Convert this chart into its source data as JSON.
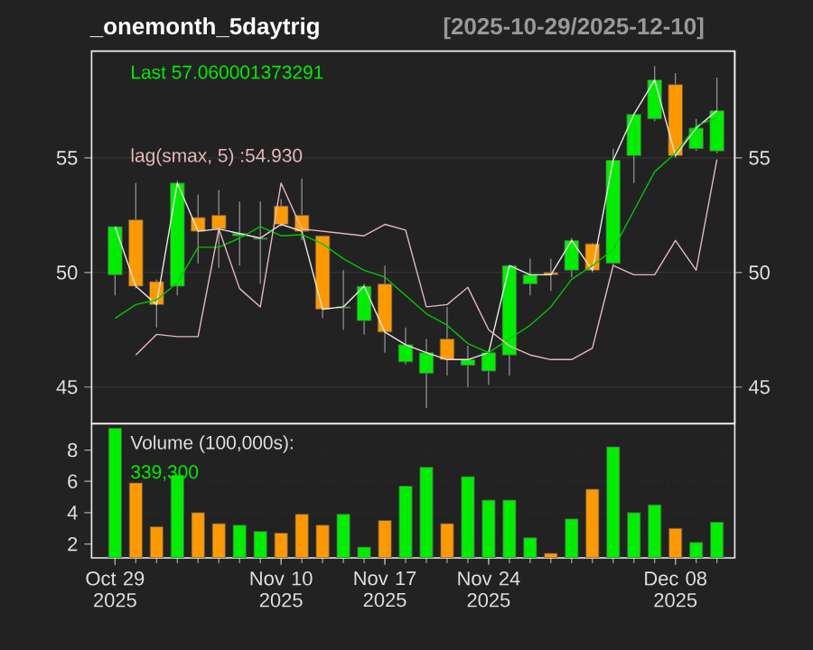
{
  "chart_data": [
    {
      "type": "candlestick",
      "title": "_onemonth_5daytrig",
      "subtitle": "[2025-10-29/2025-12-10]",
      "categories": [
        null,
        null,
        null,
        null,
        null,
        null,
        null,
        null,
        null,
        null,
        null,
        null,
        null,
        null,
        null,
        null,
        null,
        null,
        null,
        null,
        null,
        null,
        null,
        null,
        null,
        null,
        null,
        null,
        null,
        null
      ],
      "ohlc": [
        [
          49.9,
          52.0,
          49.0,
          52.0
        ],
        [
          52.3,
          53.9,
          49.3,
          49.4
        ],
        [
          49.6,
          49.7,
          47.6,
          48.6
        ],
        [
          49.4,
          54.0,
          49.0,
          53.9
        ],
        [
          52.4,
          53.4,
          50.4,
          51.8
        ],
        [
          52.5,
          53.6,
          50.2,
          51.9
        ],
        [
          51.6,
          53.1,
          50.3,
          51.7
        ],
        [
          51.45,
          53.1,
          49.5,
          51.5
        ],
        [
          52.9,
          53.2,
          52.0,
          52.1
        ],
        [
          52.5,
          54.1,
          51.4,
          51.8
        ],
        [
          51.6,
          51.6,
          48.0,
          48.4
        ],
        [
          48.45,
          50.1,
          47.5,
          48.5
        ],
        [
          47.9,
          49.5,
          47.3,
          49.4
        ],
        [
          49.5,
          50.3,
          46.5,
          47.4
        ],
        [
          46.1,
          47.6,
          46.0,
          46.85
        ],
        [
          45.6,
          47.1,
          44.1,
          46.5
        ],
        [
          47.1,
          48.5,
          45.5,
          46.2
        ],
        [
          45.95,
          46.8,
          45.0,
          46.2
        ],
        [
          45.7,
          46.6,
          45.1,
          46.5
        ],
        [
          46.4,
          50.3,
          45.5,
          50.3
        ],
        [
          49.5,
          50.6,
          49.0,
          49.9
        ],
        [
          50.0,
          50.6,
          49.2,
          49.9
        ],
        [
          50.1,
          51.5,
          49.8,
          51.4
        ],
        [
          51.25,
          51.3,
          50.0,
          50.1
        ],
        [
          50.4,
          55.4,
          50.3,
          54.9
        ],
        [
          55.1,
          56.9,
          53.9,
          56.9
        ],
        [
          56.7,
          59.0,
          56.6,
          58.4
        ],
        [
          58.2,
          58.7,
          55.0,
          55.1
        ],
        [
          55.4,
          56.7,
          55.3,
          56.3
        ],
        [
          55.3,
          58.5,
          55.2,
          57.06
        ]
      ],
      "colors": [
        "#00ee00",
        "#ff9900",
        "#ff9900",
        "#00ee00",
        "#ff9900",
        "#ff9900",
        "#00ee00",
        "#00ee00",
        "#ff9900",
        "#ff9900",
        "#ff9900",
        "#00ee00",
        "#00ee00",
        "#ff9900",
        "#00ee00",
        "#00ee00",
        "#ff9900",
        "#00ee00",
        "#00ee00",
        "#00ee00",
        "#00ee00",
        "#ff9900",
        "#00ee00",
        "#ff9900",
        "#00ee00",
        "#00ee00",
        "#00ee00",
        "#ff9900",
        "#00ee00",
        "#00ee00"
      ],
      "series": [
        {
          "type": "line",
          "color": "#e8e8e8",
          "values": [
            52.0,
            49.4,
            48.6,
            53.9,
            51.8,
            51.9,
            51.7,
            51.5,
            52.1,
            51.8,
            48.4,
            48.5,
            49.4,
            47.4,
            46.85,
            46.5,
            46.2,
            46.2,
            46.5,
            50.3,
            49.9,
            49.9,
            51.4,
            50.1,
            54.9,
            56.9,
            58.4,
            55.1,
            56.3,
            57.06
          ]
        },
        {
          "type": "line",
          "color": "#00c800",
          "values": [
            48.0,
            48.6,
            48.8,
            49.55,
            51.1,
            51.1,
            51.5,
            52.0,
            51.6,
            51.65,
            51.25,
            50.6,
            50.1,
            49.8,
            49.0,
            48.2,
            47.7,
            46.9,
            46.5,
            47.1,
            47.7,
            48.5,
            49.7,
            50.3,
            51.0,
            52.7,
            54.4,
            55.2,
            56.4,
            56.75
          ]
        },
        {
          "type": "line",
          "color": "#e6b8bc",
          "values": [
            null,
            46.4,
            47.3,
            47.2,
            47.2,
            51.9,
            49.3,
            48.5,
            53.9,
            51.9,
            51.8,
            51.7,
            51.6,
            52.1,
            51.85,
            48.5,
            48.6,
            49.35,
            47.5,
            46.8,
            46.4,
            46.2,
            46.2,
            46.7,
            50.3,
            49.9,
            49.9,
            51.4,
            50.1,
            54.93
          ]
        }
      ],
      "ylim": [
        43.4,
        59.66
      ],
      "yticks": [
        45,
        50,
        55
      ],
      "y2lim": [
        43.4,
        59.66
      ],
      "y2ticks": [
        45,
        50,
        55
      ],
      "grid": "y",
      "tick_labels": "y",
      "annotations": [
        "Last 57.060001373291",
        "lag(smax, 5) :54.930"
      ]
    },
    {
      "type": "bar",
      "categories": [
        "Oct 29 2025",
        null,
        null,
        null,
        null,
        null,
        null,
        null,
        "Nov 10 2025",
        null,
        null,
        null,
        null,
        "Nov 17 2025",
        null,
        null,
        null,
        null,
        "Nov 24 2025",
        null,
        null,
        null,
        null,
        null,
        null,
        null,
        null,
        "Dec 08 2025",
        null,
        null
      ],
      "values": [
        9.4,
        5.9,
        3.1,
        6.4,
        4.0,
        3.3,
        3.2,
        2.8,
        2.7,
        3.9,
        3.2,
        3.9,
        1.8,
        3.5,
        5.7,
        6.9,
        3.3,
        6.3,
        4.8,
        4.8,
        2.4,
        1.4,
        3.6,
        5.5,
        8.2,
        4.0,
        4.5,
        3.0,
        2.1,
        3.393
      ],
      "colors": [
        "#00ee00",
        "#ff9900",
        "#ff9900",
        "#00ee00",
        "#ff9900",
        "#ff9900",
        "#00ee00",
        "#00ee00",
        "#ff9900",
        "#ff9900",
        "#ff9900",
        "#00ee00",
        "#00ee00",
        "#ff9900",
        "#00ee00",
        "#00ee00",
        "#ff9900",
        "#00ee00",
        "#00ee00",
        "#00ee00",
        "#00ee00",
        "#ff9900",
        "#00ee00",
        "#ff9900",
        "#00ee00",
        "#00ee00",
        "#00ee00",
        "#ff9900",
        "#00ee00",
        "#00ee00"
      ],
      "ylim": [
        1.11,
        9.68
      ],
      "yticks": [
        2,
        4,
        6,
        8
      ],
      "grid": "y",
      "annotations": [
        "Volume (100,000s):",
        "339,300"
      ]
    }
  ]
}
